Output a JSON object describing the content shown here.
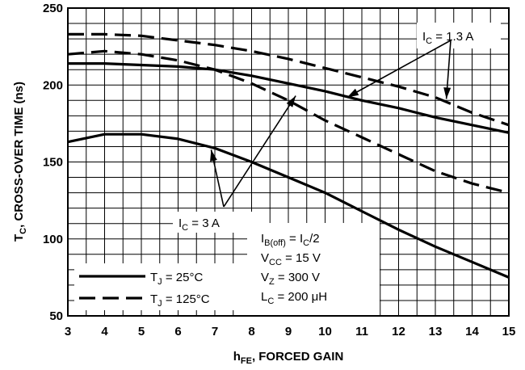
{
  "chart_data": {
    "type": "line",
    "xlabel": {
      "main": "h",
      "sub": "FE",
      "rest": ", FORCED GAIN"
    },
    "ylabel": {
      "main": "T",
      "sub": "C",
      "rest": ", CROSS-OVER TIME (ns)"
    },
    "xlim": [
      3,
      15
    ],
    "ylim": [
      50,
      250
    ],
    "xticks": [
      3,
      4,
      5,
      6,
      7,
      8,
      9,
      10,
      11,
      12,
      13,
      14,
      15
    ],
    "yticks": [
      50,
      100,
      150,
      200,
      250
    ],
    "grid": true,
    "series": [
      {
        "name": "IC = 3 A, TJ = 25°C",
        "style": "solid",
        "x": [
          3,
          4,
          5,
          6,
          7,
          8,
          9,
          10,
          11,
          12,
          13,
          14,
          15
        ],
        "y": [
          163,
          168,
          168,
          165,
          159,
          150,
          140,
          130,
          118,
          106,
          95,
          85,
          75
        ]
      },
      {
        "name": "IC = 1.3 A, TJ = 25°C",
        "style": "solid",
        "x": [
          3,
          4,
          5,
          6,
          7,
          8,
          9,
          10,
          11,
          12,
          13,
          14,
          15
        ],
        "y": [
          214,
          214,
          213,
          212,
          210,
          206,
          201,
          196,
          190,
          185,
          179,
          174,
          169
        ]
      },
      {
        "name": "IC = 3 A, TJ = 125°C",
        "style": "dashed",
        "x": [
          3,
          4,
          5,
          6,
          7,
          8,
          9,
          10,
          11,
          12,
          13,
          14,
          15
        ],
        "y": [
          220,
          222,
          220,
          216,
          210,
          201,
          190,
          177,
          166,
          155,
          144,
          136,
          130
        ]
      },
      {
        "name": "IC = 1.3 A, TJ = 125°C",
        "style": "dashed",
        "x": [
          3,
          4,
          5,
          6,
          7,
          8,
          9,
          10,
          11,
          12,
          13,
          14,
          15
        ],
        "y": [
          233,
          233,
          232,
          229,
          226,
          222,
          217,
          211,
          205,
          199,
          192,
          182,
          174
        ]
      }
    ],
    "legend": {
      "placement": "bottom-left",
      "entries": [
        {
          "style": "solid",
          "main": "T",
          "sub": "J",
          "rest": " = 25°C"
        },
        {
          "style": "dashed",
          "main": "T",
          "sub": "J",
          "rest": " = 125°C"
        }
      ]
    },
    "annotations": {
      "ic_high": {
        "main": "I",
        "sub": "C",
        "rest": " = 1.3 A"
      },
      "ic_low": {
        "main": "I",
        "sub": "C",
        "rest": " = 3 A"
      },
      "conditions": [
        {
          "main": "I",
          "sub": "B(off)",
          "rest": " = I",
          "sub2": "C",
          "rest2": "/2"
        },
        {
          "main": "V",
          "sub": "CC",
          "rest": " = 15 V"
        },
        {
          "main": "V",
          "sub": "Z",
          "rest": " = 300 V"
        },
        {
          "main": "L",
          "sub": "C",
          "rest": " = 200 μH"
        }
      ]
    }
  }
}
